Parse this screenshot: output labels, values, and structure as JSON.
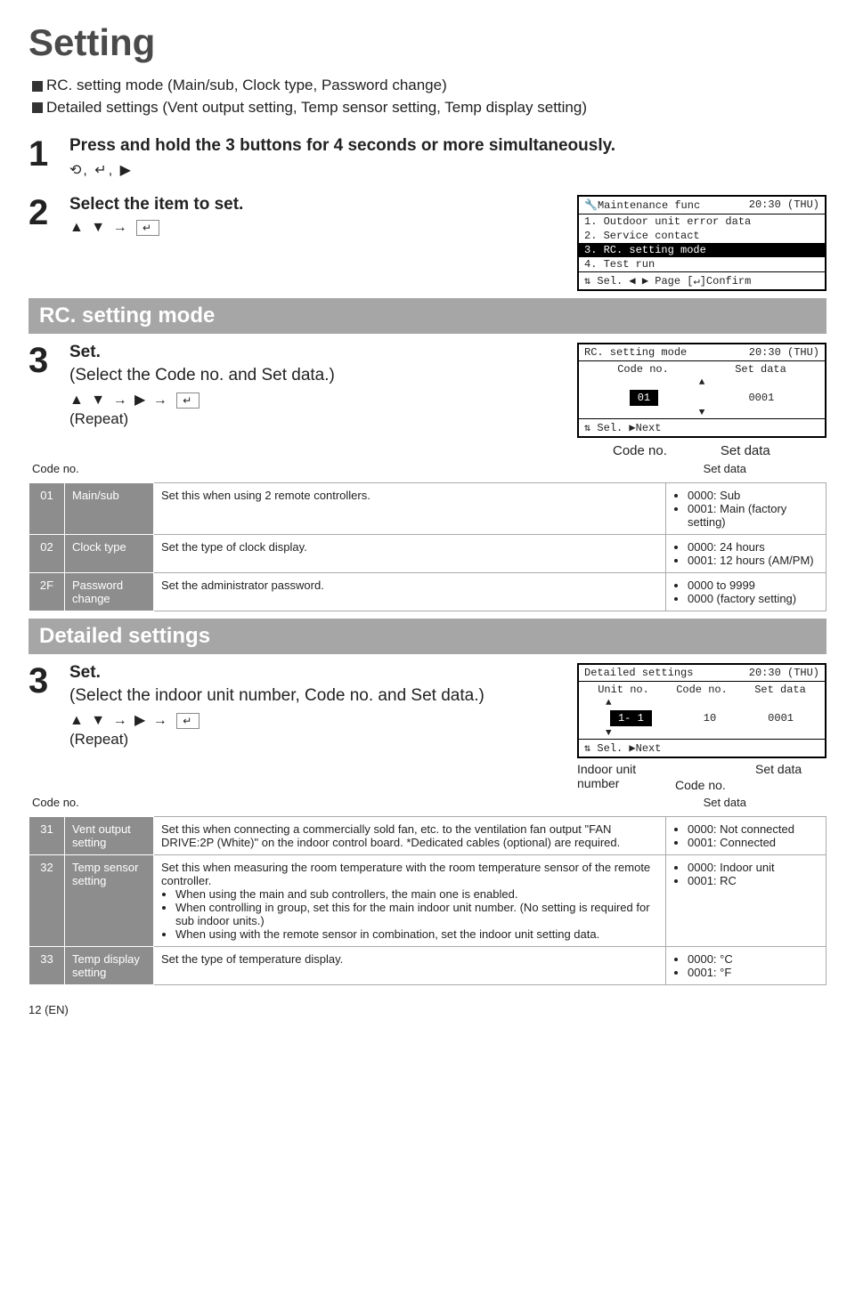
{
  "title": "Setting",
  "intro": {
    "line1_label": "RC. setting mode (Main/sub, Clock type, Password change)",
    "line2_label": "Detailed settings (Vent output setting, Temp sensor setting, Temp display setting)"
  },
  "step1": {
    "num": "1",
    "title": "Press and hold the 3 buttons for 4 seconds or more simultaneously.",
    "keys": "⟲, ↵, ▶"
  },
  "step2": {
    "num": "2",
    "title": "Select the item to set.",
    "keys_left": "▲ ▼ →",
    "keys_enter": "↵"
  },
  "lcd1": {
    "hdr_left": "🔧Maintenance func",
    "hdr_right": "20:30 (THU)",
    "r1": "1. Outdoor unit error data",
    "r2": "2. Service contact",
    "r3": "3. RC. setting mode",
    "r4": "4. Test run",
    "ft": "⇅ Sel. ◀ ▶ Page  [↵]Confirm"
  },
  "section_rc": "RC. setting mode",
  "step3a": {
    "num": "3",
    "title": "Set.",
    "sub": "(Select the Code no. and Set data.)",
    "keys": "▲ ▼ → ▶ →",
    "keys_enter": "↵",
    "repeat": "(Repeat)"
  },
  "lcd2": {
    "hdr_left": "RC. setting mode",
    "hdr_right": "20:30 (THU)",
    "c1": "Code no.",
    "c2": "Set data",
    "v1": "01",
    "v2": "0001",
    "ft": "⇅ Sel.  ▶Next",
    "callout_code": "Code no.",
    "callout_data": "Set data"
  },
  "table1": {
    "hcode": "Code no.",
    "hdata": "Set data",
    "rows": [
      {
        "code": "01",
        "name": "Main/sub",
        "desc": "Set this when using 2 remote controllers.",
        "data": [
          "0000: Sub",
          "0001: Main (factory setting)"
        ]
      },
      {
        "code": "02",
        "name": "Clock type",
        "desc": "Set the type of clock display.",
        "data": [
          "0000: 24 hours",
          "0001: 12 hours (AM/PM)"
        ]
      },
      {
        "code": "2F",
        "name": "Password change",
        "desc": "Set the administrator password.",
        "data": [
          "0000 to 9999",
          "0000 (factory setting)"
        ]
      }
    ]
  },
  "section_ds": "Detailed settings",
  "step3b": {
    "num": "3",
    "title": "Set.",
    "sub": "(Select the indoor unit number, Code no. and Set data.)",
    "keys": "▲ ▼ → ▶ →",
    "keys_enter": "↵",
    "repeat": "(Repeat)"
  },
  "lcd3": {
    "hdr_left": "Detailed settings",
    "hdr_right": "20:30 (THU)",
    "c1": "Unit no.",
    "c2": "Code no.",
    "c3": "Set data",
    "v1": "1- 1",
    "v2": "10",
    "v3": "0001",
    "ft": "⇅ Sel.  ▶Next",
    "callout_unit": "Indoor unit number",
    "callout_code": "Code no.",
    "callout_data": "Set data"
  },
  "table2": {
    "hcode": "Code no.",
    "hdata": "Set data",
    "rows": [
      {
        "code": "31",
        "name": "Vent output setting",
        "desc": "Set this when connecting a commercially sold fan, etc. to the ventilation fan output \"FAN DRIVE:2P (White)\" on the indoor control board.\n*Dedicated cables (optional) are required.",
        "data": [
          "0000: Not connected",
          "0001: Connected"
        ]
      },
      {
        "code": "32",
        "name": "Temp sensor setting",
        "desc": "Set this when measuring the room temperature with the room temperature sensor of the remote controller.",
        "bullets": [
          "When using the main and sub controllers, the main one is enabled.",
          "When controlling in group, set this for the main indoor unit number. (No setting is required for sub indoor units.)",
          "When using with the remote sensor in combination, set the indoor unit setting data."
        ],
        "data": [
          "0000: Indoor unit",
          "0001: RC"
        ]
      },
      {
        "code": "33",
        "name": "Temp display setting",
        "desc": "Set the type of temperature display.",
        "data": [
          "0000: °C",
          "0001: °F"
        ]
      }
    ]
  },
  "footer": "12  (EN)"
}
